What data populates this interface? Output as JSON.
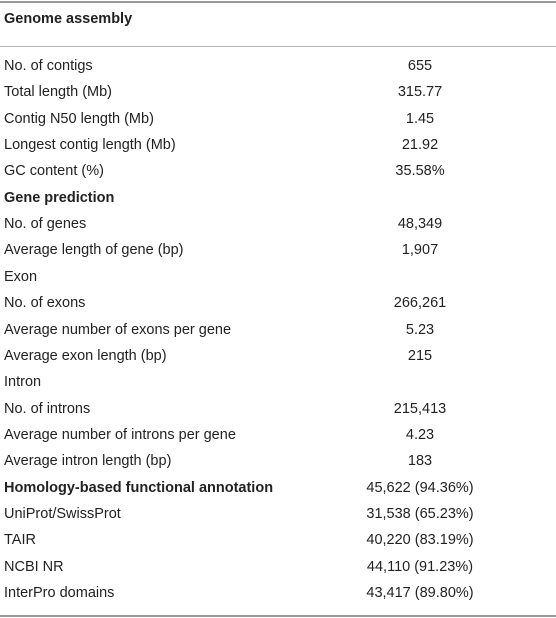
{
  "table": {
    "header": "Genome assembly",
    "rows": [
      {
        "label": "No. of contigs",
        "value": "655",
        "bold": false
      },
      {
        "label": "Total length (Mb)",
        "value": "315.77",
        "bold": false
      },
      {
        "label": "Contig N50 length (Mb)",
        "value": "1.45",
        "bold": false
      },
      {
        "label": "Longest contig length (Mb)",
        "value": "21.92",
        "bold": false
      },
      {
        "label": "GC content (%)",
        "value": "35.58%",
        "bold": false
      },
      {
        "label": "Gene prediction",
        "value": "",
        "bold": true
      },
      {
        "label": "No. of genes",
        "value": "48,349",
        "bold": false
      },
      {
        "label": "Average length of gene (bp)",
        "value": "1,907",
        "bold": false
      },
      {
        "label": "Exon",
        "value": "",
        "bold": false
      },
      {
        "label": "No. of exons",
        "value": "266,261",
        "bold": false
      },
      {
        "label": "Average number of exons per gene",
        "value": "5.23",
        "bold": false
      },
      {
        "label": "Average exon length (bp)",
        "value": "215",
        "bold": false
      },
      {
        "label": "Intron",
        "value": "",
        "bold": false
      },
      {
        "label": "No. of introns",
        "value": "215,413",
        "bold": false
      },
      {
        "label": "Average number of introns per gene",
        "value": "4.23",
        "bold": false
      },
      {
        "label": "Average intron length (bp)",
        "value": "183",
        "bold": false
      },
      {
        "label": "Homology-based functional annotation",
        "value": "45,622 (94.36%)",
        "bold": true
      },
      {
        "label": "UniProt/SwissProt",
        "value": "31,538 (65.23%)",
        "bold": false
      },
      {
        "label": "TAIR",
        "value": "40,220 (83.19%)",
        "bold": false
      },
      {
        "label": "NCBI NR",
        "value": "44,110 (91.23%)",
        "bold": false
      },
      {
        "label": "InterPro domains",
        "value": "43,417 (89.80%)",
        "bold": false
      }
    ]
  }
}
